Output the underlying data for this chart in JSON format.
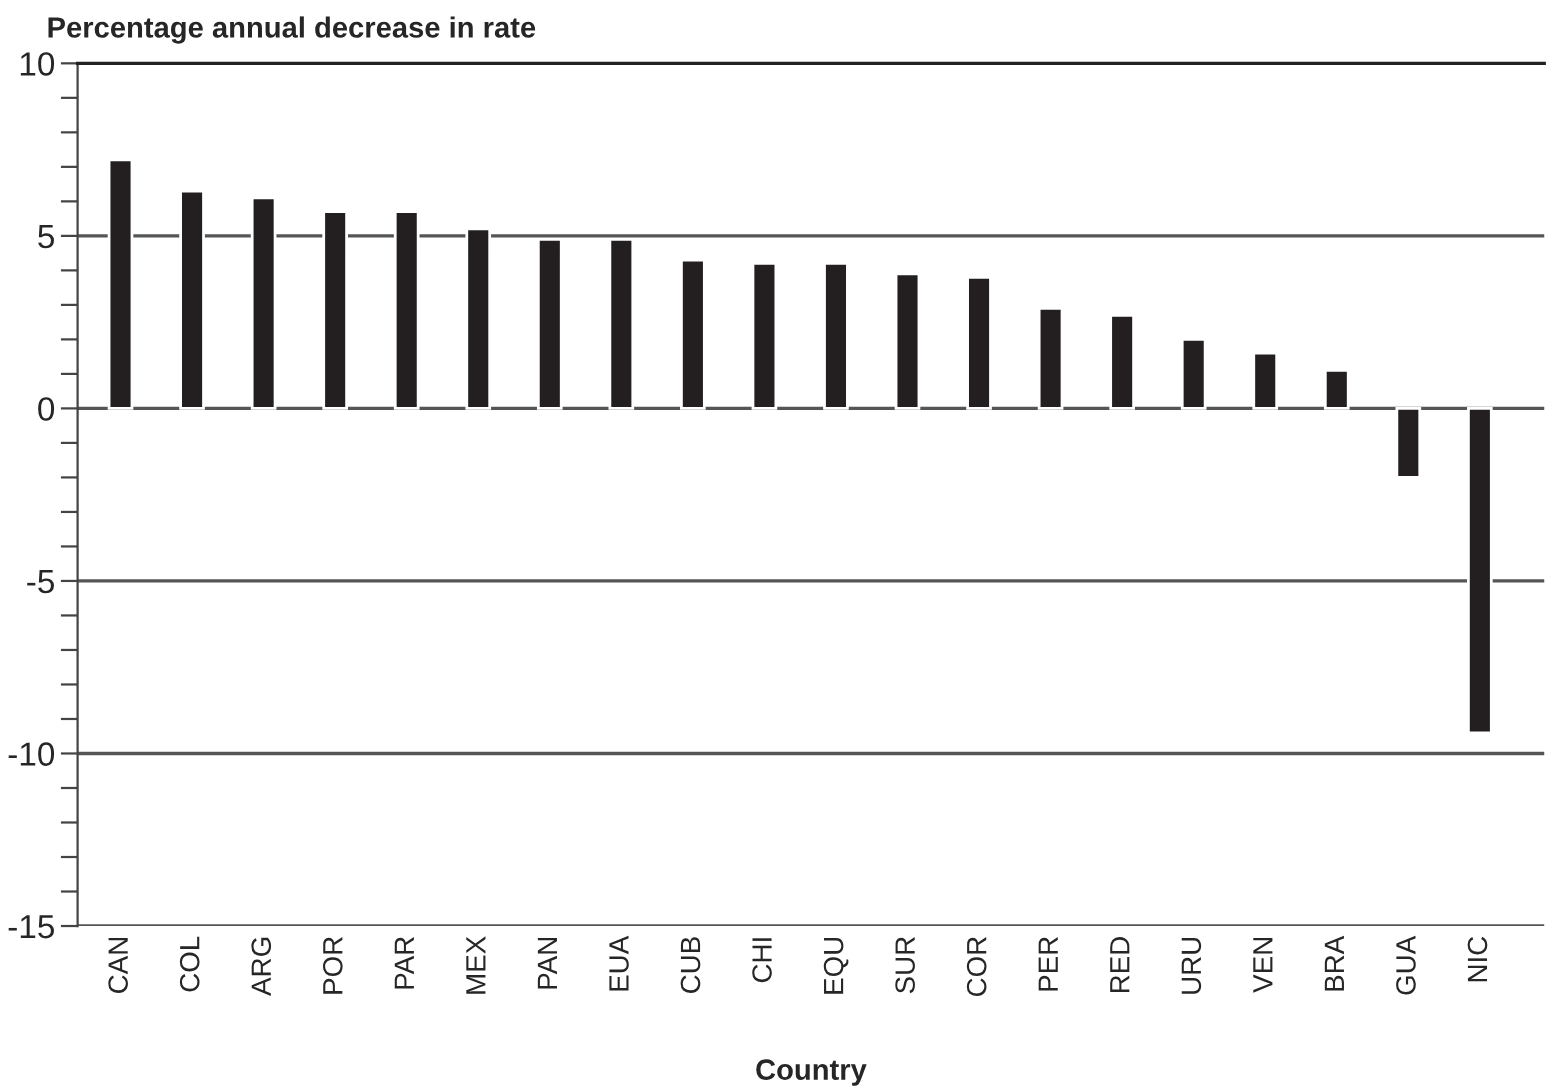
{
  "chart_data": {
    "type": "bar",
    "ylabel": "Percentage annual decrease in rate",
    "xlabel": "Country",
    "categories": [
      "CAN",
      "COL",
      "ARG",
      "POR",
      "PAR",
      "MEX",
      "PAN",
      "EUA",
      "CUB",
      "CHI",
      "EQU",
      "SUR",
      "COR",
      "PER",
      "RED",
      "URU",
      "VEN",
      "BRA",
      "GUA",
      "NIC"
    ],
    "values": [
      7.2,
      6.3,
      6.1,
      5.7,
      5.7,
      5.2,
      4.9,
      4.9,
      4.3,
      4.2,
      4.2,
      3.9,
      3.8,
      2.9,
      2.7,
      2.0,
      1.6,
      1.1,
      -2.0,
      -9.4
    ],
    "color": "#231f20",
    "ylim": [
      -15,
      10
    ],
    "yticks": [
      -15,
      {
        "value": -14,
        "label": null
      },
      {
        "value": -13,
        "label": null
      },
      {
        "value": -12,
        "label": null
      },
      {
        "value": -11,
        "label": null
      },
      -10,
      {
        "value": -9,
        "label": null
      },
      {
        "value": -8,
        "label": null
      },
      {
        "value": -7,
        "label": null
      },
      {
        "value": -6,
        "label": null
      },
      -5,
      {
        "value": -4,
        "label": null
      },
      {
        "value": -3,
        "label": null
      },
      {
        "value": -2,
        "label": null
      },
      {
        "value": -1,
        "label": null
      },
      0,
      {
        "value": 1,
        "label": null
      },
      {
        "value": 2,
        "label": null
      },
      {
        "value": 3,
        "label": null
      },
      {
        "value": 4,
        "label": null
      },
      5,
      {
        "value": 6,
        "label": null
      },
      {
        "value": 7,
        "label": null
      },
      {
        "value": 8,
        "label": null
      },
      {
        "value": 9,
        "label": null
      },
      10
    ],
    "grid": "y"
  }
}
